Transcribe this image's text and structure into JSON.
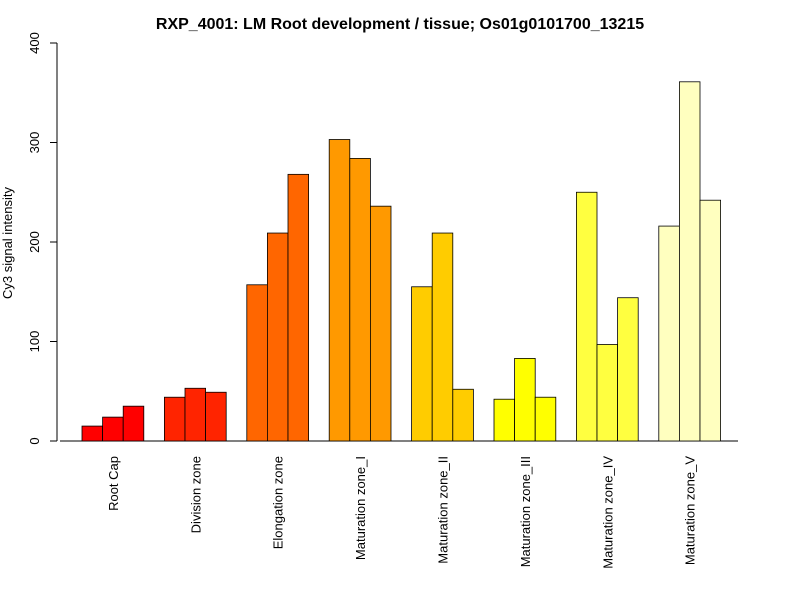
{
  "chart_data": {
    "type": "bar",
    "title": "RXP_4001: LM Root development / tissue; Os01g0101700_13215",
    "xlabel": "",
    "ylabel": "Cy3 signal intensity",
    "ylim": [
      0,
      400
    ],
    "yticks": [
      0,
      100,
      200,
      300,
      400
    ],
    "grid": false,
    "replicates_per_group": 3,
    "groups": [
      {
        "label": "Root Cap",
        "color": "#FF0000",
        "values": [
          15,
          24,
          35
        ]
      },
      {
        "label": "Division zone",
        "color": "#FF2400",
        "values": [
          44,
          53,
          49
        ]
      },
      {
        "label": "Elongation zone",
        "color": "#FF6600",
        "values": [
          157,
          209,
          268
        ]
      },
      {
        "label": "Maturation zone_I",
        "color": "#FF9900",
        "values": [
          303,
          284,
          236
        ]
      },
      {
        "label": "Maturation zone_II",
        "color": "#FFCC00",
        "values": [
          155,
          209,
          52
        ]
      },
      {
        "label": "Maturation zone_III",
        "color": "#FFFF00",
        "values": [
          42,
          83,
          44
        ]
      },
      {
        "label": "Maturation zone_IV",
        "color": "#FFFF40",
        "values": [
          250,
          97,
          144
        ]
      },
      {
        "label": "Maturation zone_V",
        "color": "#FFFFBF",
        "values": [
          216,
          361,
          242
        ]
      }
    ]
  }
}
